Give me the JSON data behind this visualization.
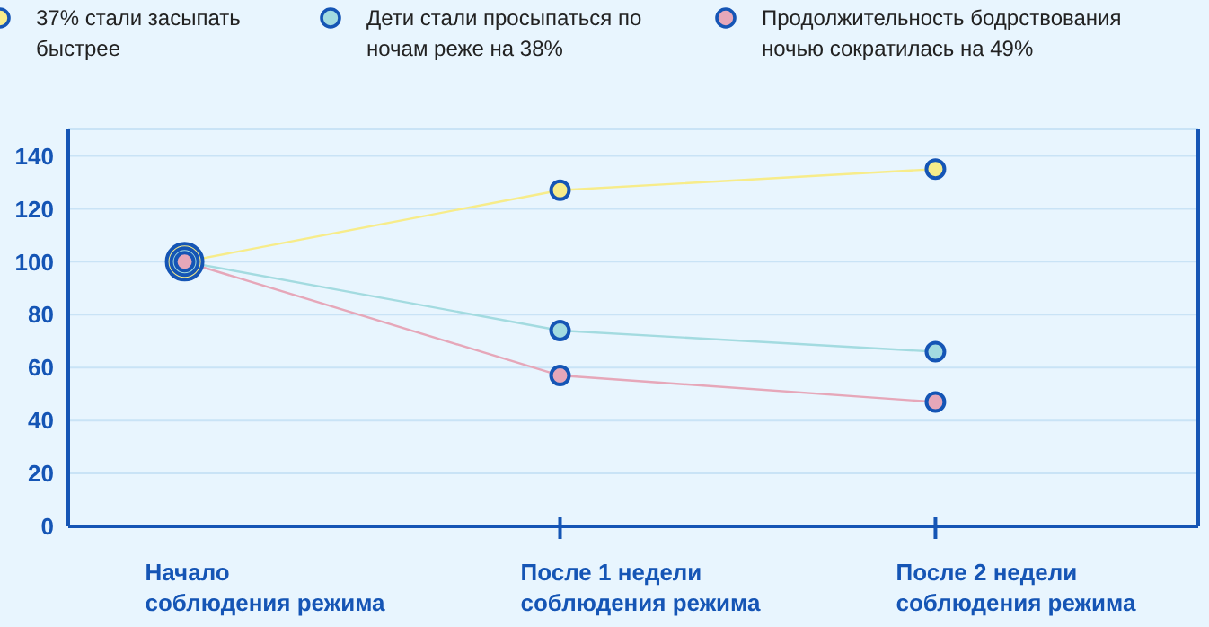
{
  "chart_data": {
    "type": "line",
    "categories": [
      "Начало соблюдения режима",
      "После 1 недели соблюдения режима",
      "После 2 недели соблюдения режима"
    ],
    "series": [
      {
        "name": "37% стали засыпать быстрее",
        "color": "#f7ec8a",
        "values": [
          100,
          127,
          135
        ]
      },
      {
        "name": "Дети стали просыпаться по ночам реже на 38%",
        "color": "#a3dbe0",
        "values": [
          100,
          74,
          66
        ]
      },
      {
        "name": "Продолжительность бодрствования ночью сократилась на 49%",
        "color": "#e6a7b9",
        "values": [
          100,
          57,
          47
        ]
      }
    ],
    "ylim": [
      0,
      150
    ],
    "yticks": [
      0,
      20,
      40,
      60,
      80,
      100,
      120,
      140
    ],
    "grid": "y",
    "legend": "top left",
    "marker": "circle",
    "line_style": "solid"
  }
}
